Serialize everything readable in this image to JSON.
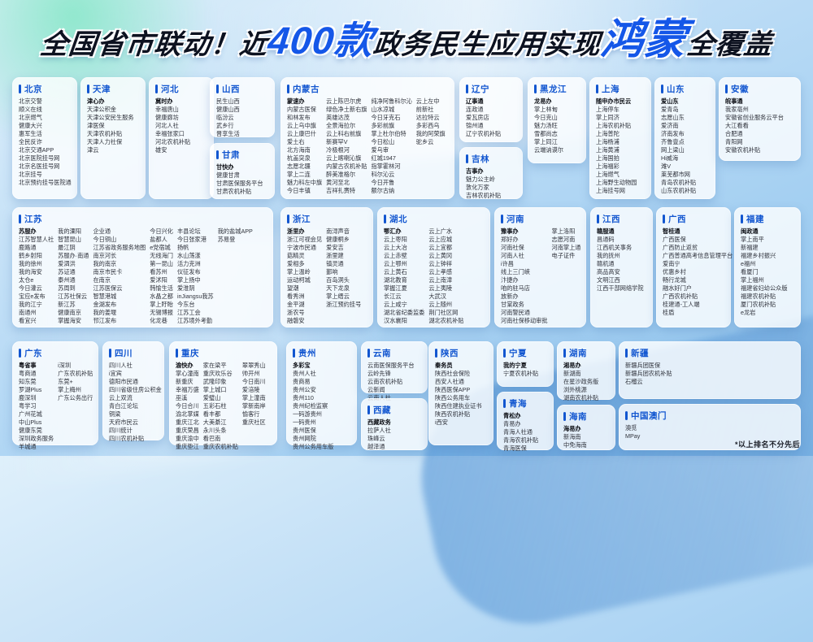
{
  "title": {
    "part1": "全国省市联动！近",
    "highlight1": "400款",
    "part2": "政务民生应用实现",
    "highlight2": "鸿蒙",
    "part3": "全覆盖"
  },
  "footnote": "*以上排名不分先后",
  "colors": {
    "accent": "#1256d0",
    "highlight": "#1557e8",
    "card_bg": "#ffffff"
  },
  "provinces": [
    {
      "id": "beijing",
      "name": "北京",
      "bold_first": false,
      "columns": [
        [
          "北京交警",
          "顺义在线",
          "北京燃气",
          "健康大兴",
          "惠军生活",
          "全民反诈",
          "北京交通APP",
          "北京医院挂号网",
          "北京名医挂号网",
          "北京挂号",
          "北京预约挂号医院通"
        ]
      ]
    },
    {
      "id": "tianjin",
      "name": "天津",
      "bold_first": true,
      "columns": [
        [
          "津心办",
          "天津公积金",
          "天津公安民生服务",
          "津医保",
          "天津农机补贴",
          "天津人力社保",
          "津云"
        ]
      ]
    },
    {
      "id": "hebei",
      "name": "河北",
      "bold_first": true,
      "columns": [
        [
          "冀时办",
          "幸福唐山",
          "健康廊坊",
          "河北人社",
          "幸福张家口",
          "河北农机补贴",
          "雄安"
        ]
      ]
    },
    {
      "id": "shanxi",
      "name": "山西",
      "bold_first": false,
      "columns": [
        [
          "民生山西",
          "健康山西",
          "临汾云",
          "武乡行",
          "晋享生活"
        ]
      ]
    },
    {
      "id": "gansu",
      "name": "甘肃",
      "bold_first": true,
      "columns": [
        [
          "甘快办",
          "健康甘肃",
          "甘肃医保服务平台",
          "甘肃农机补贴"
        ]
      ]
    },
    {
      "id": "neimenggu",
      "name": "内蒙古",
      "bold_first": true,
      "columns": [
        [
          "蒙速办",
          "内蒙古医保",
          "和林发布",
          "云上乌中旗",
          "云上康巴什",
          "爱土右",
          "北方海南",
          "杭盖突泉",
          "志愿北疆",
          "掌上二连",
          "魅力科左中旗",
          "今日丰镇"
        ],
        [
          "云上陈巴尔虎",
          "绿色净土新右旗",
          "英雄达茂",
          "全景海拉尔",
          "云上科右前旗",
          "新赛罕V",
          "冷极根河",
          "云上喀喇沁旗",
          "内蒙古农机补贴",
          "醉美准格尔",
          "黄河至北",
          "吉祥扎赉特"
        ],
        [
          "纯净阿鲁科尔沁",
          "山水凉城",
          "今日牙克石",
          "多彩前旗",
          "掌上杜尔伯特",
          "今日松山",
          "爱乌审",
          "红城1947",
          "指掌霍林河",
          "科尔沁云",
          "今日开鲁",
          "额尔古纳"
        ],
        [
          "云上左中",
          "前新社",
          "达拉特云",
          "多彩西乌",
          "我的阿荣旗",
          "驼乡云"
        ]
      ]
    },
    {
      "id": "liaoning",
      "name": "辽宁",
      "bold_first": true,
      "columns": [
        [
          "辽事通",
          "连政通",
          "爱瓦房店",
          "锦州通",
          "辽宁农机补贴"
        ]
      ]
    },
    {
      "id": "jilin",
      "name": "吉林",
      "bold_first": true,
      "columns": [
        [
          "吉事办",
          "魅力公主岭",
          "敦化万家",
          "吉林农机补贴"
        ]
      ]
    },
    {
      "id": "heilongjiang",
      "name": "黑龙江",
      "bold_first": true,
      "columns": [
        [
          "龙易办",
          "掌上林甸",
          "今日克山",
          "魅力汤旺",
          "雪都尚志",
          "掌上同江",
          "云端讷谟尔"
        ]
      ]
    },
    {
      "id": "shanghai",
      "name": "上海",
      "bold_first": true,
      "columns": [
        [
          "随申办市民云",
          "上海停车",
          "掌上同济",
          "上海农机补贴",
          "上海普陀",
          "上海杨浦",
          "上海黄浦",
          "上海国拍",
          "上海福彩",
          "上海燃气",
          "上海野生动物园",
          "上海挂号网"
        ]
      ]
    },
    {
      "id": "shandong",
      "name": "山东",
      "bold_first": true,
      "columns": [
        [
          "爱山东",
          "爱青岛",
          "志愿山东",
          "爱济南",
          "济南发布",
          "齐鲁壹点",
          "网上梁山",
          "Hi威海",
          "潍V",
          "莱芜都市网",
          "青岛农机补贴",
          "山东农机补贴"
        ]
      ]
    },
    {
      "id": "anhui",
      "name": "安徽",
      "bold_first": true,
      "columns": [
        [
          "皖事通",
          "我家亳州",
          "安徽省创业服务云平台",
          "大江看看",
          "合肥通",
          "青阳网",
          "安徽农机补贴"
        ]
      ]
    },
    {
      "id": "jiangsu",
      "name": "江苏",
      "bold_first": true,
      "columns": [
        [
          "苏服办",
          "江苏智慧人社",
          "鹿路通",
          "鹤乡射阳",
          "我的徐州",
          "我的海安",
          "太仓e",
          "今日灌云",
          "宝应e发布",
          "我的江宁",
          "南通州",
          "看宜兴"
        ],
        [
          "我的溧阳",
          "智慧昆山",
          "最江阴",
          "苏服办·南通",
          "爱泗洪",
          "苏证通",
          "泰州通",
          "苏周到",
          "江苏社保云",
          "新江苏",
          "健康南京",
          "掌握海安"
        ],
        [
          "企业通",
          "今日铜山",
          "江苏省政务服务地图",
          "南京河长",
          "我的南京",
          "南京市民卡",
          "在南京",
          "江苏医保云",
          "智慧港城",
          "金湖发布",
          "我的姜堰",
          "邗江发布"
        ],
        [
          "今日兴化",
          "盐都人",
          "e党宿城",
          "无线海门",
          "第一昆山",
          "看苏州",
          "爱沭阳",
          "韩愉生活",
          "水晶之都",
          "掌上盱眙",
          "无锡博报",
          "化龙巷"
        ],
        [
          "丰县论坛",
          "今日张家港",
          "扬帆",
          "水山荡漾",
          "活力克洲",
          "仪征发布",
          "掌上扬中",
          "爱淮阴",
          "inJiangsu我苏",
          "今东台",
          "江苏工会",
          "江苏境外考勤"
        ],
        [
          "我的盐城APP",
          "苏易登"
        ]
      ]
    },
    {
      "id": "zhejiang",
      "name": "浙江",
      "bold_first": true,
      "columns": [
        [
          "浙里办",
          "浙江可视会见",
          "宁波市民通",
          "菇精灵",
          "爱相多",
          "掌上温岭",
          "运动柯城",
          "望潮",
          "看秀洲",
          "金平湖",
          "浙农号",
          "融磐安"
        ],
        [
          "南浔声音",
          "健康桐乡",
          "爱安吉",
          "浙里建",
          "镇灵通",
          "鄞响",
          "百岛洞头",
          "天下龙泉",
          "掌上缙云",
          "浙江预约挂号"
        ]
      ]
    },
    {
      "id": "hubei",
      "name": "湖北",
      "bold_first": true,
      "columns": [
        [
          "鄂汇办",
          "云上枣阳",
          "云上大冶",
          "云上赤壁",
          "云上鄂州",
          "云上黄石",
          "湖北教育",
          "掌握江夏",
          "长江云",
          "云上咸宁",
          "湖北省纪委监委",
          "汉水襄阳"
        ],
        [
          "云上广水",
          "云上应城",
          "云上宜都",
          "云上黄冈",
          "云上钟祥",
          "云上孝感",
          "云上南漳",
          "云上夷陵",
          "大武汉",
          "云上随州",
          "荆门社区网",
          "湖北农机补贴"
        ]
      ]
    },
    {
      "id": "henan",
      "name": "河南",
      "bold_first": true,
      "columns": [
        [
          "豫事办",
          "郑好办",
          "河南社保",
          "河南人社",
          "i许昌",
          "线上三门峡",
          "汴捷办",
          "咱的驻马店",
          "放新办",
          "甘棠政务",
          "河南警民通",
          "河南社保移动审批"
        ],
        [
          "掌上洛阳",
          "志愿河南",
          "河南掌上通",
          "电子证件"
        ]
      ]
    },
    {
      "id": "jiangxi",
      "name": "江西",
      "bold_first": true,
      "columns": [
        [
          "赣服通",
          "昌通码",
          "江西机关事务",
          "我的抚州",
          "赣机通",
          "高品高安",
          "文明江西",
          "江西干部网络学院"
        ]
      ]
    },
    {
      "id": "guangxi",
      "name": "广西",
      "bold_first": true,
      "columns": [
        [
          "智桂通",
          "广西医保",
          "广西防止返贫",
          "广西普通高考信息管理平台",
          "爱南宁",
          "优惠乡村",
          "畅行龙城",
          "融水好门户",
          "广西农机补贴",
          "桂建通-工人端",
          "桂盾"
        ]
      ]
    },
    {
      "id": "fujian",
      "name": "福建",
      "bold_first": true,
      "columns": [
        [
          "闽政通",
          "掌上南平",
          "新福建",
          "福建乡村振兴",
          "e福州",
          "看厦门",
          "掌上福州",
          "福建省妇幼公众版",
          "福建农机补贴",
          "厦门农机补贴",
          "e龙岩"
        ]
      ]
    },
    {
      "id": "guangdong",
      "name": "广东",
      "bold_first": true,
      "columns": [
        [
          "粤省事",
          "粤商通",
          "知东莞",
          "罗湖Plus",
          "鹿深圳",
          "粤学习",
          "广州花城",
          "中山Plus",
          "健康东莞",
          "深圳政务服务",
          "羊城通"
        ],
        [
          "i深圳",
          "广东农机补贴",
          "东莞+",
          "掌上梅州",
          "广东公务出行"
        ]
      ]
    },
    {
      "id": "sichuan",
      "name": "四川",
      "bold_first": false,
      "columns": [
        [
          "四川人社",
          "i宜宾",
          "德阳市民通",
          "四川省级住房公积金",
          "云上双流",
          "青白江论坛",
          "铜梁",
          "天府市民云",
          "四川统计",
          "四川农机补贴"
        ]
      ]
    },
    {
      "id": "chongqing",
      "name": "重庆",
      "bold_first": true,
      "columns": [
        [
          "渝快办",
          "掌心潼南",
          "新重庆",
          "幸福万盛",
          "巫溪",
          "今日合川",
          "渝北掌媒",
          "重庆江北",
          "重庆荣昌",
          "重庆渝中",
          "重庆垫江"
        ],
        [
          "家在梁平",
          "重庆欢乐谷",
          "武隆印象",
          "掌上城口",
          "爱璧山",
          "五彩石柱",
          "看丰都",
          "大美綦江",
          "永川头条",
          "看巴南",
          "重庆农机补贴"
        ],
        [
          "翠翠秀山",
          "帅开州",
          "今日南川",
          "爱涪陵",
          "掌上潼南",
          "掌新南岸",
          "愉客行",
          "重庆社区"
        ]
      ]
    },
    {
      "id": "guizhou",
      "name": "贵州",
      "bold_first": true,
      "columns": [
        [
          "多彩宝",
          "贵州人社",
          "贵商易",
          "贵州公安",
          "贵州110",
          "贵州纪检监察",
          "一码游贵州",
          "一码贵州",
          "贵州医保",
          "贵州网院",
          "贵州公务用车版"
        ]
      ]
    },
    {
      "id": "yunnan",
      "name": "云南",
      "bold_first": false,
      "columns": [
        [
          "云南医保服务平台",
          "云岭先锋",
          "云南农机补贴",
          "云新闻",
          "云南人社"
        ]
      ]
    },
    {
      "id": "xizang",
      "name": "西藏",
      "bold_first": true,
      "columns": [
        [
          "西藏政务",
          "拉萨人社",
          "珠峰云",
          "越泽通"
        ]
      ]
    },
    {
      "id": "shaanxi",
      "name": "陕西",
      "bold_first": true,
      "columns": [
        [
          "秦务员",
          "陕西社会保险",
          "西安人社通",
          "陕西医保APP",
          "陕西公务用车",
          "陕西住建执业证书",
          "陕西农机补贴",
          "i西安"
        ]
      ]
    },
    {
      "id": "ningxia",
      "name": "宁夏",
      "bold_first": true,
      "columns": [
        [
          "我的宁夏",
          "宁夏农机补贴"
        ]
      ]
    },
    {
      "id": "qinghai",
      "name": "青海",
      "bold_first": true,
      "columns": [
        [
          "青松办",
          "青易办",
          "青海人社通",
          "青海农机补贴",
          "青海医保"
        ]
      ]
    },
    {
      "id": "hunan",
      "name": "湖南",
      "bold_first": true,
      "columns": [
        [
          "湘易办",
          "新湖南",
          "在星沙政务版",
          "浏外桃源",
          "湖南农机补贴"
        ]
      ]
    },
    {
      "id": "hainan",
      "name": "海南",
      "bold_first": true,
      "columns": [
        [
          "海易办",
          "新海南",
          "中免海南"
        ]
      ]
    },
    {
      "id": "xinjiang",
      "name": "新疆",
      "bold_first": false,
      "columns": [
        [
          "新疆兵团医保",
          "新疆兵团农机补贴",
          "石榴云"
        ]
      ]
    },
    {
      "id": "macau",
      "name": "中国澳门",
      "bold_first": false,
      "columns": [
        [
          "澳觅",
          "MPay"
        ]
      ]
    }
  ]
}
